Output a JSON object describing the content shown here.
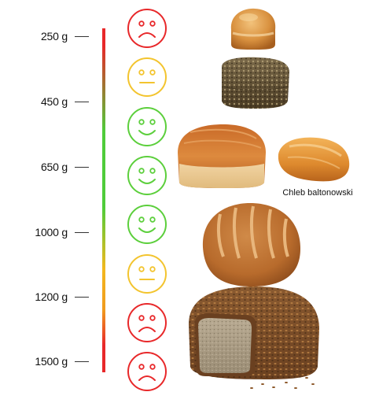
{
  "scale": {
    "weights": [
      "250 g",
      "450 g",
      "650 g",
      "1000 g",
      "1200 g",
      "1500 g"
    ]
  },
  "faces": [
    {
      "mood": "sad",
      "color": "#e8282a"
    },
    {
      "mood": "neutral",
      "color": "#f3c42e"
    },
    {
      "mood": "happy",
      "color": "#5ccf3c"
    },
    {
      "mood": "happy",
      "color": "#5ccf3c"
    },
    {
      "mood": "happy",
      "color": "#5ccf3c"
    },
    {
      "mood": "neutral",
      "color": "#f3c42e"
    },
    {
      "mood": "sad",
      "color": "#e8282a"
    },
    {
      "mood": "sad",
      "color": "#e8282a"
    }
  ],
  "breads": {
    "baltonowski_label": "Chleb baltonowski"
  },
  "colors": {
    "good": "#5ccf3c",
    "medium": "#f3c42e",
    "bad": "#e8282a"
  }
}
